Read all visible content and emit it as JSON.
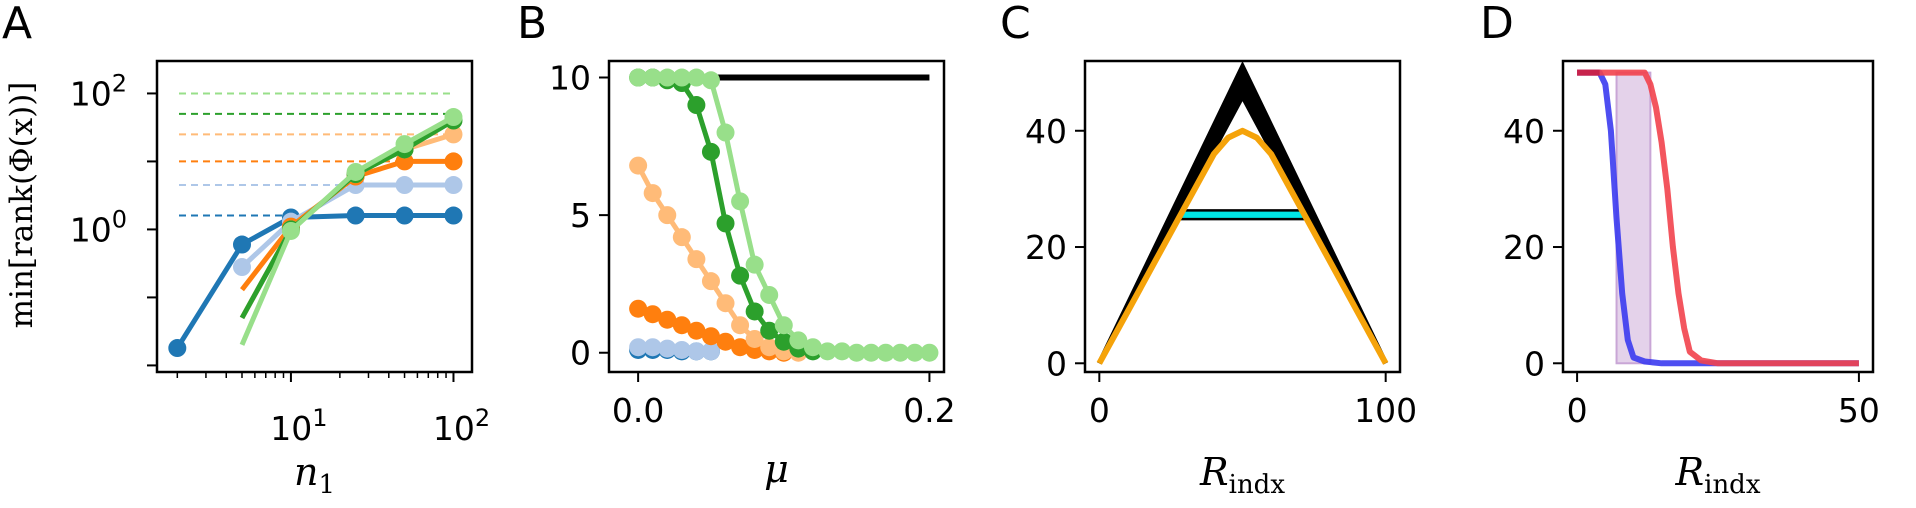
{
  "chart_data": [
    {
      "panel": "A",
      "type": "line",
      "ylabel": "min[rank(Φ(x))]",
      "xlabel": "n",
      "xlabel_sub": "1",
      "xscale": "log",
      "yscale": "log",
      "xlim": [
        1.5,
        130
      ],
      "ylim": [
        0.008,
        300
      ],
      "xticks": [
        {
          "value": 10,
          "base": "10",
          "exp": "1"
        },
        {
          "value": 100,
          "base": "10",
          "exp": "2"
        }
      ],
      "yticks": [
        {
          "value": 1,
          "base": "10",
          "exp": "0"
        },
        {
          "value": 100,
          "base": "10",
          "exp": "2"
        }
      ],
      "series": [
        {
          "color": "#1f77b4",
          "x": [
            2,
            5,
            10,
            25,
            50,
            100
          ],
          "y": [
            0.018,
            0.6,
            1.5,
            1.6,
            1.6,
            1.6
          ],
          "dashed_level": 1.6
        },
        {
          "color": "#aec7e8",
          "x": [
            5,
            10,
            25,
            50,
            100
          ],
          "y": [
            0.28,
            1.3,
            4.5,
            4.5,
            4.5
          ],
          "dashed_level": 4.5
        },
        {
          "color": "#ff7f0e",
          "x": [
            5,
            10,
            25,
            50,
            100
          ],
          "y": [
            0.13,
            1.1,
            6.0,
            10,
            10
          ],
          "dashed_level": 10
        },
        {
          "color": "#ffbb78",
          "x": [
            5,
            10,
            25,
            50,
            100
          ],
          "y": [
            0.05,
            1.0,
            6.5,
            15,
            25
          ],
          "dashed_level": 25
        },
        {
          "color": "#2ca02c",
          "x": [
            5,
            10,
            25,
            50,
            100
          ],
          "y": [
            0.05,
            1.0,
            6.5,
            15,
            40
          ],
          "dashed_level": 50
        },
        {
          "color": "#98df8a",
          "x": [
            5,
            10,
            25,
            50,
            100
          ],
          "y": [
            0.02,
            0.95,
            7.0,
            18,
            45
          ],
          "dashed_level": 100
        }
      ]
    },
    {
      "panel": "B",
      "type": "line",
      "xlabel": "μ",
      "xlim": [
        -0.02,
        0.21
      ],
      "ylim": [
        -0.7,
        10.6
      ],
      "xticks": [
        0.0,
        0.2
      ],
      "xtick_labels": [
        "0.0",
        "0.2"
      ],
      "yticks": [
        0,
        5,
        10
      ],
      "reference_line": {
        "color": "#000000",
        "y": 10,
        "x": [
          0.0,
          0.2
        ]
      },
      "series": [
        {
          "color": "#1f77b4",
          "x": [
            0.0,
            0.01,
            0.02,
            0.03,
            0.04,
            0.05
          ],
          "y": [
            0.1,
            0.1,
            0.1,
            0.05,
            0.05,
            0.05
          ]
        },
        {
          "color": "#aec7e8",
          "x": [
            0.0,
            0.01,
            0.02,
            0.03,
            0.04,
            0.05
          ],
          "y": [
            0.2,
            0.2,
            0.15,
            0.1,
            0.05,
            0.05
          ]
        },
        {
          "color": "#ff7f0e",
          "x": [
            0.0,
            0.01,
            0.02,
            0.03,
            0.04,
            0.05,
            0.06,
            0.07,
            0.08,
            0.09,
            0.1
          ],
          "y": [
            1.6,
            1.4,
            1.2,
            1.0,
            0.8,
            0.6,
            0.4,
            0.2,
            0.1,
            0.05,
            0.0
          ]
        },
        {
          "color": "#ffbb78",
          "x": [
            0.0,
            0.01,
            0.02,
            0.03,
            0.04,
            0.05,
            0.06,
            0.07,
            0.08,
            0.09,
            0.1,
            0.11
          ],
          "y": [
            6.8,
            5.8,
            5.0,
            4.2,
            3.4,
            2.6,
            1.8,
            1.0,
            0.5,
            0.2,
            0.05,
            0.0
          ]
        },
        {
          "color": "#2ca02c",
          "x": [
            0.0,
            0.01,
            0.02,
            0.03,
            0.04,
            0.05,
            0.06,
            0.07,
            0.08,
            0.09,
            0.1,
            0.11,
            0.12
          ],
          "y": [
            10,
            10,
            9.9,
            9.8,
            9.0,
            7.3,
            4.7,
            2.8,
            1.5,
            0.8,
            0.4,
            0.15,
            0.05
          ]
        },
        {
          "color": "#98df8a",
          "x": [
            0.0,
            0.01,
            0.02,
            0.03,
            0.04,
            0.05,
            0.06,
            0.07,
            0.08,
            0.09,
            0.1,
            0.11,
            0.12,
            0.13,
            0.14,
            0.15,
            0.16,
            0.17,
            0.18,
            0.19,
            0.2
          ],
          "y": [
            10,
            10,
            10,
            10,
            10,
            9.9,
            8.0,
            5.5,
            3.2,
            2.1,
            1.0,
            0.45,
            0.2,
            0.05,
            0.05,
            0.0,
            0.0,
            0.0,
            0.0,
            0.0,
            0.0
          ]
        }
      ]
    },
    {
      "panel": "C",
      "type": "area",
      "xlabel": "R",
      "xlabel_sub": "indx",
      "xlim": [
        -5,
        105
      ],
      "ylim": [
        -1.5,
        52
      ],
      "xticks": [
        0,
        100
      ],
      "yticks": [
        0,
        20,
        40
      ],
      "black_band": {
        "color": "#000000",
        "x": [
          0,
          50,
          100
        ],
        "lower": [
          0,
          46,
          0
        ],
        "upper": [
          0,
          51,
          0
        ]
      },
      "cyan_band": {
        "color": "#00e5e5",
        "x": [
          28,
          72
        ],
        "lower": 24.8,
        "upper": 26.3
      },
      "orange_line": {
        "color": "#f5a30a",
        "x": [
          0,
          10,
          20,
          30,
          40,
          45,
          50,
          55,
          60,
          70,
          80,
          90,
          100
        ],
        "y": [
          0,
          9,
          18,
          27,
          36,
          38.8,
          40,
          38.8,
          36,
          27,
          18,
          9,
          0
        ]
      }
    },
    {
      "panel": "D",
      "type": "line",
      "xlabel": "R",
      "xlabel_sub": "indx",
      "xlim": [
        -2.5,
        52.5
      ],
      "ylim": [
        -1.5,
        52
      ],
      "xticks": [
        0,
        50
      ],
      "yticks": [
        0,
        20,
        40
      ],
      "shaded_band": {
        "color": "#c9a6d6",
        "x_range": [
          7,
          13
        ],
        "y_range": [
          0,
          50
        ]
      },
      "series": [
        {
          "color": "#3b3bf0",
          "x": [
            0,
            4,
            5,
            6,
            7,
            8,
            9,
            10,
            12,
            15,
            50
          ],
          "y": [
            50,
            50,
            48,
            40,
            25,
            12,
            4,
            1,
            0.3,
            0,
            0
          ]
        },
        {
          "color": "#f2424c",
          "x": [
            0,
            12,
            13,
            14,
            15,
            16,
            17,
            18,
            19,
            20,
            22,
            25,
            50
          ],
          "y": [
            50,
            50,
            48,
            44,
            38,
            30,
            20,
            12,
            6,
            2,
            0.5,
            0,
            0
          ]
        },
        {
          "color": "#c4204a",
          "x": [
            0,
            4
          ],
          "y": [
            50,
            50
          ]
        }
      ]
    }
  ]
}
